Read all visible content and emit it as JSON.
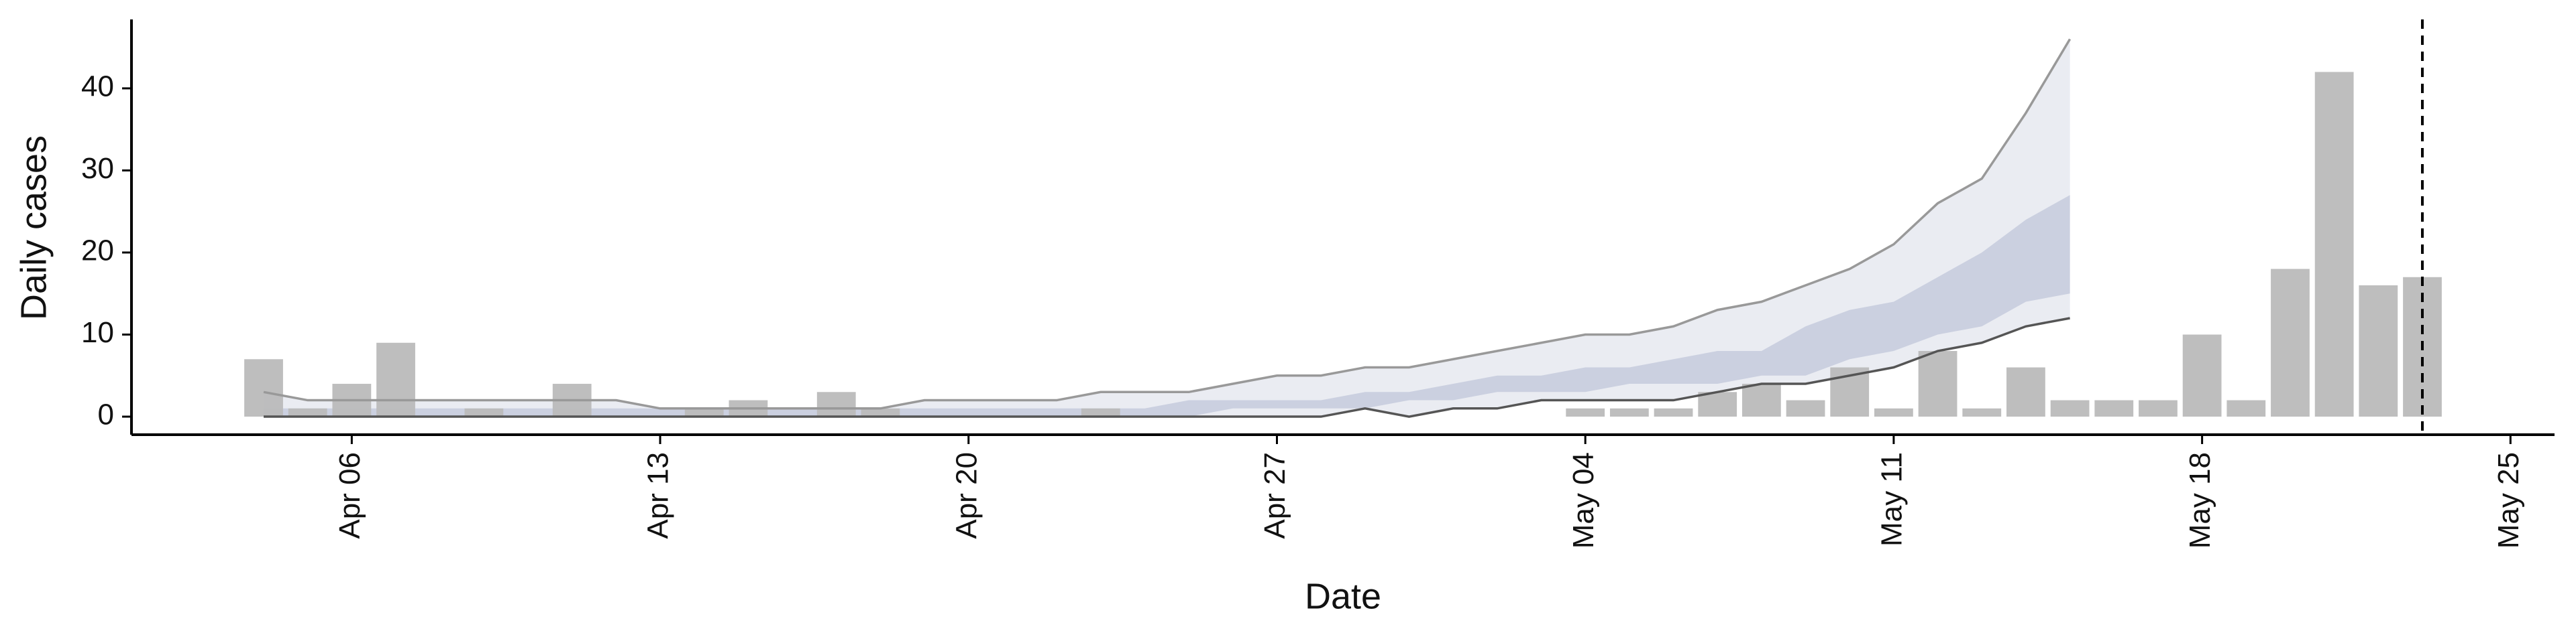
{
  "chart_data": {
    "type": "bar",
    "x_label": "Date",
    "y_label": "Daily cases",
    "color": "#bbbbbb",
    "x": [
      "Apr 04",
      "Apr 05",
      "Apr 06",
      "Apr 07",
      "Apr 08",
      "Apr 09",
      "Apr 10",
      "Apr 11",
      "Apr 12",
      "Apr 13",
      "Apr 14",
      "Apr 15",
      "Apr 16",
      "Apr 17",
      "Apr 18",
      "Apr 19",
      "Apr 20",
      "Apr 21",
      "Apr 22",
      "Apr 23",
      "Apr 24",
      "Apr 25",
      "Apr 26",
      "Apr 27",
      "Apr 28",
      "Apr 29",
      "Apr 30",
      "May 01",
      "May 02",
      "May 03",
      "May 04",
      "May 05",
      "May 06",
      "May 07",
      "May 08",
      "May 09",
      "May 10",
      "May 11",
      "May 12",
      "May 13",
      "May 14",
      "May 15",
      "May 16",
      "May 17",
      "May 18",
      "May 19",
      "May 20",
      "May 21",
      "May 22",
      "May 23"
    ],
    "values": [
      7,
      1,
      4,
      9,
      0,
      1,
      0,
      4,
      0,
      0,
      1,
      2,
      0,
      3,
      1,
      0,
      0,
      0,
      0,
      1,
      0,
      0,
      0,
      0,
      0,
      0,
      0,
      0,
      0,
      0,
      1,
      1,
      1,
      3,
      4,
      2,
      6,
      1,
      8,
      1,
      6,
      2,
      2,
      2,
      10,
      2,
      18,
      42,
      16,
      17
    ],
    "forecast": {
      "x": [
        "Apr 04",
        "Apr 05",
        "Apr 06",
        "Apr 07",
        "Apr 08",
        "Apr 09",
        "Apr 10",
        "Apr 11",
        "Apr 12",
        "Apr 13",
        "Apr 14",
        "Apr 15",
        "Apr 16",
        "Apr 17",
        "Apr 18",
        "Apr 19",
        "Apr 20",
        "Apr 21",
        "Apr 22",
        "Apr 23",
        "Apr 24",
        "Apr 25",
        "Apr 26",
        "Apr 27",
        "Apr 28",
        "Apr 29",
        "Apr 30",
        "May 01",
        "May 02",
        "May 03",
        "May 04",
        "May 05",
        "May 06",
        "May 07",
        "May 08",
        "May 09",
        "May 10",
        "May 11",
        "May 12",
        "May 13",
        "May 14",
        "May 15"
      ],
      "upper_90": [
        3,
        2,
        2,
        2,
        2,
        2,
        2,
        2,
        2,
        1,
        1,
        1,
        1,
        1,
        1,
        2,
        2,
        2,
        2,
        3,
        3,
        3,
        4,
        5,
        5,
        6,
        6,
        7,
        8,
        9,
        10,
        10,
        11,
        13,
        14,
        16,
        18,
        21,
        26,
        29,
        37,
        46
      ],
      "lower_90": [
        0,
        0,
        0,
        0,
        0,
        0,
        0,
        0,
        0,
        0,
        0,
        0,
        0,
        0,
        0,
        0,
        0,
        0,
        0,
        0,
        0,
        0,
        0,
        0,
        0,
        1,
        0,
        1,
        1,
        2,
        2,
        2,
        2,
        3,
        4,
        4,
        5,
        6,
        8,
        9,
        11,
        12
      ],
      "upper_50": [
        1,
        1,
        1,
        1,
        1,
        1,
        1,
        1,
        1,
        1,
        1,
        1,
        1,
        1,
        1,
        1,
        1,
        1,
        1,
        1,
        1,
        2,
        2,
        2,
        2,
        3,
        3,
        4,
        5,
        5,
        6,
        6,
        7,
        8,
        8,
        11,
        13,
        14,
        17,
        20,
        24,
        27
      ],
      "lower_50": [
        0,
        0,
        0,
        0,
        0,
        0,
        0,
        0,
        0,
        0,
        0,
        0,
        0,
        0,
        0,
        0,
        0,
        0,
        0,
        0,
        0,
        0,
        1,
        1,
        1,
        1,
        2,
        2,
        3,
        3,
        3,
        4,
        4,
        4,
        5,
        5,
        7,
        8,
        10,
        11,
        14,
        15
      ],
      "band_90_color": "#eaecf2",
      "band_50_color": "#cbd0e0",
      "upper_line_color": "#999999",
      "lower_line_color": "#555555"
    },
    "vline": "May 23",
    "xlim": [
      "Apr 01",
      "May 26"
    ],
    "xticks": [
      "Apr 06",
      "Apr 13",
      "Apr 20",
      "Apr 27",
      "May 04",
      "May 11",
      "May 18",
      "May 25"
    ],
    "ylim": [
      -2.2,
      48.4
    ],
    "yticks": [
      0,
      10,
      20,
      30,
      40
    ]
  }
}
